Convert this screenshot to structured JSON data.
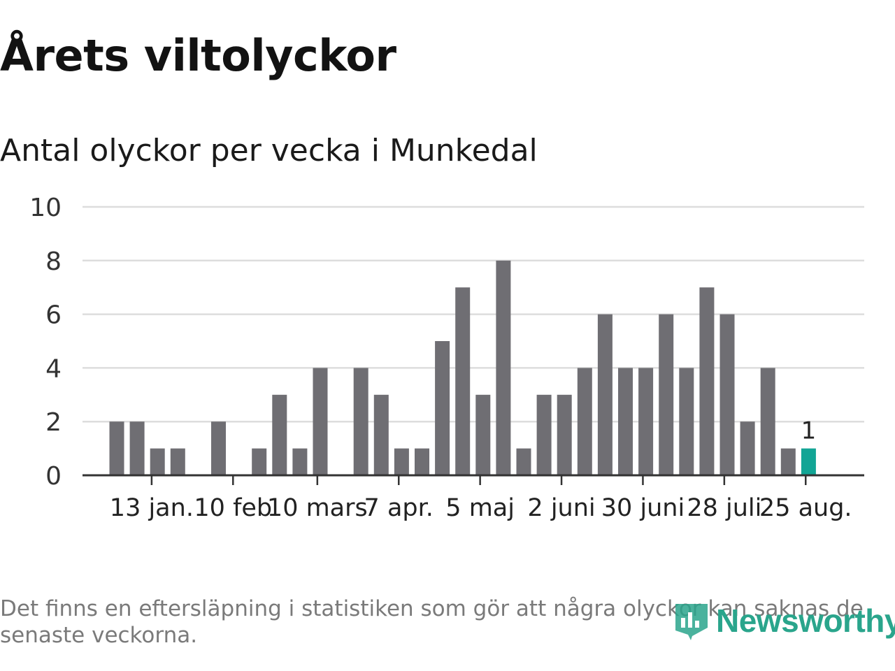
{
  "title": "Årets viltolyckor",
  "subtitle": "Antal olyckor per vecka i Munkedal",
  "footnote": "Det finns en eftersläpning i statistiken som gör att några olyckor kan saknas de senaste veckorna.",
  "logo_text": "Newsworthy",
  "colors": {
    "bar": "#6f6e73",
    "highlight": "#12a595",
    "grid": "#dddddd",
    "axis": "#333333",
    "brand": "#2aa58c"
  },
  "chart_data": {
    "type": "bar",
    "x": [
      "2024-01-01",
      "2024-01-08",
      "2024-01-15",
      "2024-01-22",
      "2024-01-29",
      "2024-02-05",
      "2024-02-12",
      "2024-02-19",
      "2024-02-26",
      "2024-03-04",
      "2024-03-11",
      "2024-03-18",
      "2024-03-25",
      "2024-04-01",
      "2024-04-08",
      "2024-04-15",
      "2024-04-22",
      "2024-04-29",
      "2024-05-06",
      "2024-05-13",
      "2024-05-20",
      "2024-05-27",
      "2024-06-03",
      "2024-06-10",
      "2024-06-17",
      "2024-06-24",
      "2024-07-01",
      "2024-07-08",
      "2024-07-15",
      "2024-07-22",
      "2024-07-29",
      "2024-08-05",
      "2024-08-12",
      "2024-08-19",
      "2024-08-26",
      "2024-09-02"
    ],
    "values": [
      2,
      2,
      1,
      1,
      0,
      2,
      0,
      1,
      3,
      1,
      4,
      0,
      4,
      3,
      1,
      1,
      5,
      7,
      3,
      8,
      1,
      3,
      3,
      4,
      6,
      4,
      4,
      6,
      4,
      7,
      6,
      2,
      4,
      1,
      1,
      null
    ],
    "highlight_index": 34,
    "value_label": "1",
    "ylim": [
      0,
      10
    ],
    "yticks": [
      "0",
      "2",
      "4",
      "6",
      "8",
      "10"
    ],
    "xtick_labels": [
      "13 jan.",
      "10 feb",
      "10 mars",
      "7 apr.",
      "5 maj",
      "2 juni",
      "30 juni",
      "28 juli",
      "25 aug."
    ],
    "xtick_dates": [
      "2024-01-13",
      "2024-02-10",
      "2024-03-10",
      "2024-04-07",
      "2024-05-05",
      "2024-06-02",
      "2024-06-30",
      "2024-07-28",
      "2024-08-25"
    ],
    "grid": true
  }
}
